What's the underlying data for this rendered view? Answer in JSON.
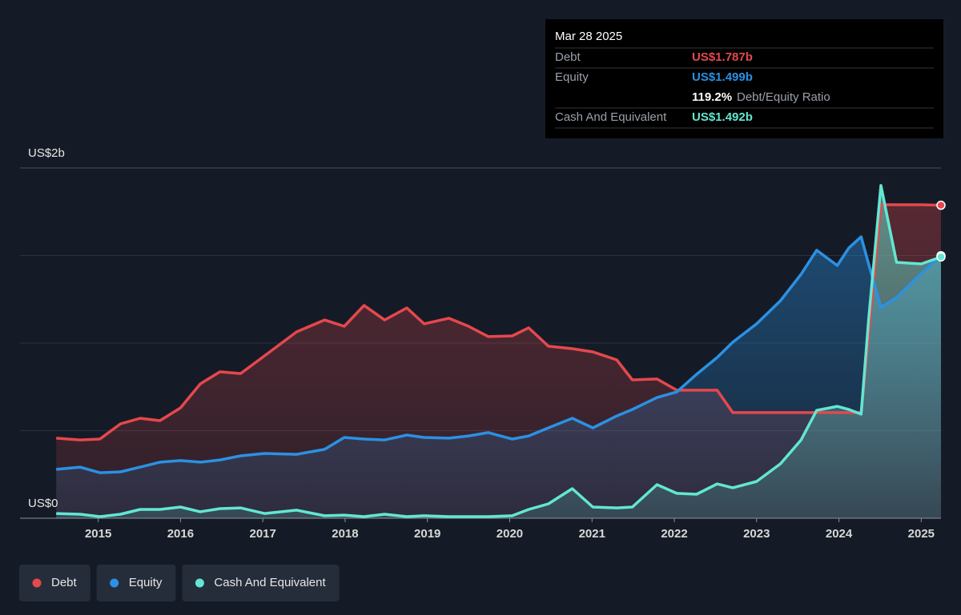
{
  "chart_data": {
    "type": "area",
    "x": [
      2014.49,
      2014.78,
      2015.02,
      2015.27,
      2015.51,
      2015.75,
      2016.0,
      2016.24,
      2016.48,
      2016.73,
      2017.02,
      2017.41,
      2017.75,
      2017.99,
      2018.23,
      2018.48,
      2018.75,
      2018.96,
      2019.26,
      2019.5,
      2019.74,
      2020.03,
      2020.23,
      2020.47,
      2020.76,
      2021.01,
      2021.3,
      2021.49,
      2021.79,
      2022.03,
      2022.27,
      2022.52,
      2022.71,
      2023.0,
      2023.29,
      2023.54,
      2023.73,
      2023.98,
      2024.12,
      2024.27,
      2024.36,
      2024.51,
      2024.7,
      2025.0,
      2025.24
    ],
    "series": [
      {
        "name": "Debt",
        "color": "#e5484d",
        "last_label": "US$1.787b",
        "values": [
          0.457,
          0.447,
          0.452,
          0.539,
          0.571,
          0.557,
          0.63,
          0.767,
          0.836,
          0.826,
          0.927,
          1.064,
          1.132,
          1.096,
          1.215,
          1.132,
          1.201,
          1.11,
          1.142,
          1.096,
          1.037,
          1.041,
          1.087,
          0.982,
          0.968,
          0.95,
          0.904,
          0.79,
          0.795,
          0.731,
          0.731,
          0.731,
          0.603,
          0.603,
          0.603,
          0.603,
          0.603,
          0.603,
          0.603,
          0.603,
          1.041,
          1.79,
          1.79,
          1.79,
          1.787
        ]
      },
      {
        "name": "Equity",
        "color": "#2b91e3",
        "last_label": "US$1.499b",
        "values": [
          0.279,
          0.292,
          0.26,
          0.265,
          0.292,
          0.32,
          0.329,
          0.32,
          0.333,
          0.356,
          0.37,
          0.365,
          0.393,
          0.461,
          0.452,
          0.447,
          0.475,
          0.461,
          0.457,
          0.47,
          0.489,
          0.452,
          0.47,
          0.516,
          0.571,
          0.516,
          0.584,
          0.621,
          0.689,
          0.721,
          0.822,
          0.918,
          1.005,
          1.11,
          1.242,
          1.393,
          1.53,
          1.443,
          1.543,
          1.607,
          1.452,
          1.205,
          1.26,
          1.397,
          1.499
        ]
      },
      {
        "name": "Cash And Equivalent",
        "color": "#63e6d2",
        "last_label": "US$1.492b",
        "values": [
          0.027,
          0.023,
          0.009,
          0.023,
          0.05,
          0.05,
          0.064,
          0.037,
          0.055,
          0.059,
          0.027,
          0.046,
          0.014,
          0.018,
          0.009,
          0.023,
          0.009,
          0.014,
          0.009,
          0.009,
          0.009,
          0.014,
          0.05,
          0.082,
          0.169,
          0.064,
          0.059,
          0.064,
          0.192,
          0.142,
          0.137,
          0.196,
          0.174,
          0.21,
          0.311,
          0.447,
          0.616,
          0.639,
          0.621,
          0.594,
          1.132,
          1.9,
          1.461,
          1.452,
          1.492
        ]
      }
    ],
    "xlim": [
      2014.05,
      2025.24
    ],
    "xticks": [
      2015,
      2016,
      2017,
      2018,
      2019,
      2020,
      2021,
      2022,
      2023,
      2024,
      2025
    ],
    "ylim": [
      0,
      2
    ],
    "yticks": [
      {
        "value": 0,
        "label": "US$0"
      },
      {
        "value": 2,
        "label": "US$2b"
      }
    ],
    "ygrid": [
      0,
      0.5,
      1,
      1.5,
      2
    ],
    "tooltip": {
      "date": "Mar 28 2025",
      "ratio_label": "119.2%",
      "ratio_name": "Debt/Equity Ratio"
    }
  }
}
